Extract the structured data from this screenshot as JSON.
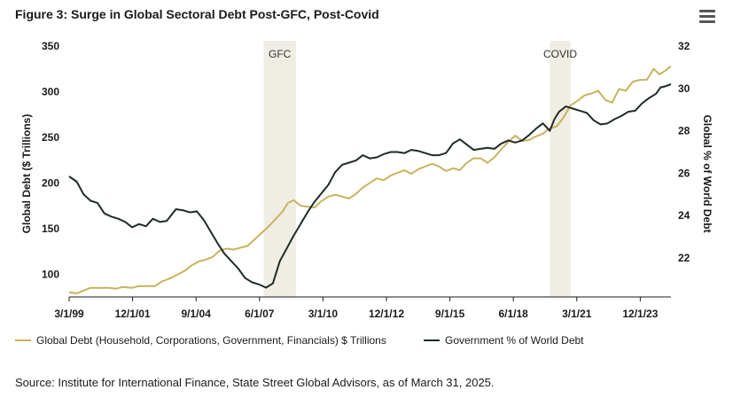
{
  "header": {
    "title": "Figure 3: Surge in Global Sectoral Debt Post-GFC, Post-Covid",
    "menu_icon": "hamburger-menu-icon"
  },
  "chart_data": {
    "type": "line",
    "title": "Figure 3: Surge in Global Sectoral Debt Post-GFC, Post-Covid",
    "xlabel": "",
    "ylabel": "Global Debt ($ Trillions)",
    "y2label": "Global % of World Debt",
    "xlim": [
      1999.17,
      2025.25
    ],
    "ylim": [
      75,
      350
    ],
    "y2lim": [
      20.16,
      32
    ],
    "x_ticks": [
      {
        "label": "3/1/99",
        "x": 1999.17
      },
      {
        "label": "12/1/01",
        "x": 2001.92
      },
      {
        "label": "9/1/04",
        "x": 2004.67
      },
      {
        "label": "6/1/07",
        "x": 2007.42
      },
      {
        "label": "3/1/10",
        "x": 2010.17
      },
      {
        "label": "12/1/12",
        "x": 2012.92
      },
      {
        "label": "9/1/15",
        "x": 2015.67
      },
      {
        "label": "6/1/18",
        "x": 2018.42
      },
      {
        "label": "3/1/21",
        "x": 2021.17
      },
      {
        "label": "12/1/23",
        "x": 2023.92
      }
    ],
    "y_ticks": [
      100,
      150,
      200,
      250,
      300,
      350
    ],
    "y2_ticks": [
      22,
      24,
      26,
      28,
      30,
      32
    ],
    "grid": false,
    "legend_position": "bottom",
    "bands": [
      {
        "label": "GFC",
        "x0": 2007.6,
        "x1": 2009.0,
        "color": "#f0ede4"
      },
      {
        "label": "COVID",
        "x0": 2020.0,
        "x1": 2020.9,
        "color": "#f0ede4"
      }
    ],
    "series": [
      {
        "name": "Global Debt (Household, Corporations, Government, Financials) $ Trillions",
        "axis": "left",
        "color": "#c9b25e",
        "points": [
          [
            1999.17,
            80
          ],
          [
            1999.5,
            79
          ],
          [
            1999.8,
            82
          ],
          [
            2000.1,
            85
          ],
          [
            2000.5,
            85
          ],
          [
            2000.9,
            85
          ],
          [
            2001.2,
            84
          ],
          [
            2001.5,
            86
          ],
          [
            2001.9,
            85
          ],
          [
            2002.2,
            87
          ],
          [
            2002.6,
            87
          ],
          [
            2002.9,
            87
          ],
          [
            2003.2,
            92
          ],
          [
            2003.6,
            96
          ],
          [
            2003.9,
            100
          ],
          [
            2004.2,
            104
          ],
          [
            2004.5,
            110
          ],
          [
            2004.8,
            114
          ],
          [
            2005.1,
            116
          ],
          [
            2005.4,
            119
          ],
          [
            2005.7,
            126
          ],
          [
            2006.0,
            128
          ],
          [
            2006.3,
            127
          ],
          [
            2006.6,
            129
          ],
          [
            2006.9,
            131
          ],
          [
            2007.2,
            138
          ],
          [
            2007.5,
            145
          ],
          [
            2007.8,
            152
          ],
          [
            2008.1,
            160
          ],
          [
            2008.4,
            168
          ],
          [
            2008.65,
            178
          ],
          [
            2008.9,
            181
          ],
          [
            2009.2,
            175
          ],
          [
            2009.5,
            174
          ],
          [
            2009.8,
            173
          ],
          [
            2010.1,
            180
          ],
          [
            2010.4,
            185
          ],
          [
            2010.7,
            187
          ],
          [
            2011.0,
            185
          ],
          [
            2011.3,
            183
          ],
          [
            2011.6,
            188
          ],
          [
            2011.9,
            195
          ],
          [
            2012.2,
            200
          ],
          [
            2012.5,
            205
          ],
          [
            2012.8,
            203
          ],
          [
            2013.1,
            208
          ],
          [
            2013.4,
            211
          ],
          [
            2013.7,
            214
          ],
          [
            2014.0,
            210
          ],
          [
            2014.3,
            215
          ],
          [
            2014.6,
            218
          ],
          [
            2014.9,
            221
          ],
          [
            2015.2,
            218
          ],
          [
            2015.5,
            213
          ],
          [
            2015.8,
            216
          ],
          [
            2016.1,
            214
          ],
          [
            2016.4,
            222
          ],
          [
            2016.7,
            227
          ],
          [
            2017.0,
            227
          ],
          [
            2017.3,
            222
          ],
          [
            2017.6,
            228
          ],
          [
            2017.9,
            237
          ],
          [
            2018.2,
            245
          ],
          [
            2018.5,
            252
          ],
          [
            2018.8,
            246
          ],
          [
            2019.1,
            247
          ],
          [
            2019.4,
            251
          ],
          [
            2019.7,
            254
          ],
          [
            2020.0,
            260
          ],
          [
            2020.3,
            262
          ],
          [
            2020.6,
            272
          ],
          [
            2020.9,
            285
          ],
          [
            2021.2,
            290
          ],
          [
            2021.5,
            296
          ],
          [
            2021.8,
            298
          ],
          [
            2022.1,
            301
          ],
          [
            2022.4,
            291
          ],
          [
            2022.7,
            288
          ],
          [
            2023.0,
            303
          ],
          [
            2023.3,
            301
          ],
          [
            2023.6,
            311
          ],
          [
            2023.9,
            313
          ],
          [
            2024.2,
            313
          ],
          [
            2024.5,
            325
          ],
          [
            2024.75,
            319
          ],
          [
            2025.0,
            323
          ],
          [
            2025.25,
            328
          ]
        ]
      },
      {
        "name": "Government % of World Debt",
        "axis": "right",
        "color": "#1f2b24",
        "points": [
          [
            1999.17,
            25.85
          ],
          [
            1999.5,
            25.6
          ],
          [
            1999.8,
            25.0
          ],
          [
            2000.1,
            24.7
          ],
          [
            2000.4,
            24.6
          ],
          [
            2000.7,
            24.1
          ],
          [
            2001.0,
            23.95
          ],
          [
            2001.3,
            23.85
          ],
          [
            2001.6,
            23.7
          ],
          [
            2001.9,
            23.45
          ],
          [
            2002.2,
            23.6
          ],
          [
            2002.5,
            23.5
          ],
          [
            2002.8,
            23.85
          ],
          [
            2003.1,
            23.7
          ],
          [
            2003.4,
            23.75
          ],
          [
            2003.8,
            24.3
          ],
          [
            2004.1,
            24.25
          ],
          [
            2004.4,
            24.15
          ],
          [
            2004.7,
            24.2
          ],
          [
            2005.0,
            23.8
          ],
          [
            2005.3,
            23.25
          ],
          [
            2005.6,
            22.7
          ],
          [
            2005.9,
            22.2
          ],
          [
            2006.2,
            21.85
          ],
          [
            2006.5,
            21.5
          ],
          [
            2006.8,
            21.05
          ],
          [
            2007.1,
            20.85
          ],
          [
            2007.4,
            20.75
          ],
          [
            2007.7,
            20.6
          ],
          [
            2008.0,
            20.8
          ],
          [
            2008.3,
            21.85
          ],
          [
            2008.6,
            22.45
          ],
          [
            2008.9,
            23.05
          ],
          [
            2009.2,
            23.6
          ],
          [
            2009.5,
            24.15
          ],
          [
            2009.8,
            24.65
          ],
          [
            2010.1,
            25.05
          ],
          [
            2010.4,
            25.45
          ],
          [
            2010.7,
            26.05
          ],
          [
            2011.0,
            26.4
          ],
          [
            2011.3,
            26.5
          ],
          [
            2011.6,
            26.6
          ],
          [
            2011.9,
            26.85
          ],
          [
            2012.2,
            26.7
          ],
          [
            2012.5,
            26.75
          ],
          [
            2012.8,
            26.9
          ],
          [
            2013.1,
            27.0
          ],
          [
            2013.4,
            27.0
          ],
          [
            2013.7,
            26.95
          ],
          [
            2014.0,
            27.1
          ],
          [
            2014.3,
            27.05
          ],
          [
            2014.6,
            26.95
          ],
          [
            2014.9,
            26.85
          ],
          [
            2015.2,
            26.85
          ],
          [
            2015.5,
            26.95
          ],
          [
            2015.8,
            27.4
          ],
          [
            2016.1,
            27.6
          ],
          [
            2016.4,
            27.35
          ],
          [
            2016.7,
            27.1
          ],
          [
            2017.0,
            27.15
          ],
          [
            2017.3,
            27.2
          ],
          [
            2017.6,
            27.15
          ],
          [
            2017.9,
            27.4
          ],
          [
            2018.2,
            27.55
          ],
          [
            2018.5,
            27.45
          ],
          [
            2018.8,
            27.55
          ],
          [
            2019.1,
            27.8
          ],
          [
            2019.4,
            28.1
          ],
          [
            2019.7,
            28.35
          ],
          [
            2020.0,
            28.0
          ],
          [
            2020.2,
            28.55
          ],
          [
            2020.4,
            28.9
          ],
          [
            2020.7,
            29.15
          ],
          [
            2021.0,
            29.05
          ],
          [
            2021.3,
            28.95
          ],
          [
            2021.6,
            28.85
          ],
          [
            2021.9,
            28.5
          ],
          [
            2022.2,
            28.3
          ],
          [
            2022.5,
            28.35
          ],
          [
            2022.8,
            28.55
          ],
          [
            2023.1,
            28.7
          ],
          [
            2023.4,
            28.9
          ],
          [
            2023.7,
            28.95
          ],
          [
            2024.0,
            29.3
          ],
          [
            2024.3,
            29.55
          ],
          [
            2024.6,
            29.75
          ],
          [
            2024.8,
            30.05
          ],
          [
            2025.0,
            30.1
          ],
          [
            2025.25,
            30.2
          ]
        ]
      }
    ]
  },
  "legend": {
    "series1": "Global Debt (Household, Corporations, Government, Financials) $ Trillions",
    "series2": "Government % of World Debt"
  },
  "footer": {
    "source": "Source: Institute for International Finance, State Street Global Advisors, as of March 31, 2025."
  }
}
